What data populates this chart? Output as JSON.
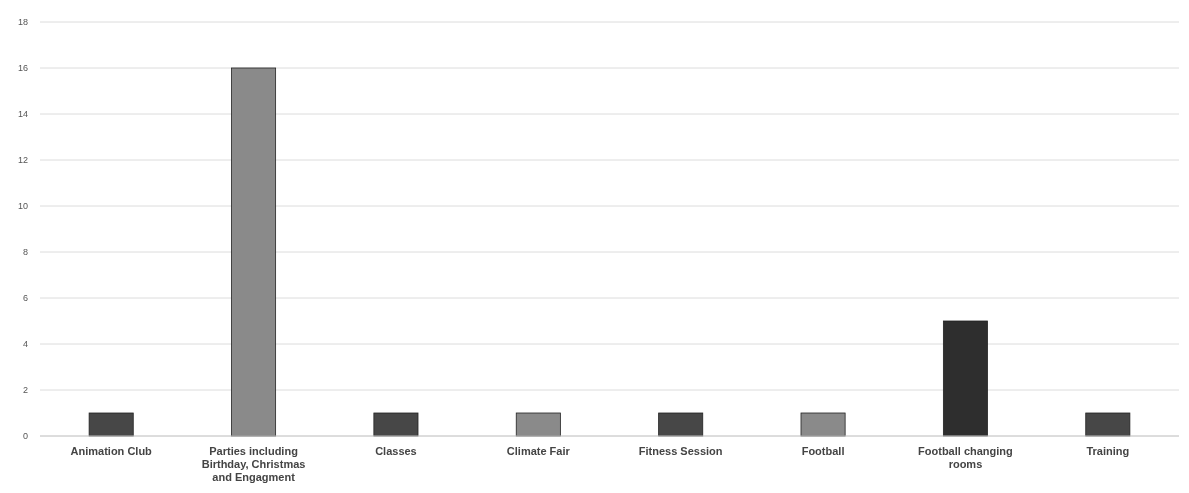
{
  "chart_data": {
    "type": "bar",
    "categories": [
      "Animation Club",
      "Parties including Birthday, Christmas and Engagment",
      "Classes",
      "Climate Fair",
      "Fitness Session",
      "Football",
      "Football changing rooms",
      "Training"
    ],
    "values": [
      1,
      16,
      1,
      1,
      1,
      1,
      5,
      1
    ],
    "colors": [
      "#474747",
      "#8a8a8a",
      "#474747",
      "#8a8a8a",
      "#474747",
      "#8a8a8a",
      "#2e2e2e",
      "#474747"
    ],
    "ylim": [
      0,
      18
    ],
    "yticks": [
      0,
      2,
      4,
      6,
      8,
      10,
      12,
      14,
      16,
      18
    ],
    "grid": "y"
  }
}
